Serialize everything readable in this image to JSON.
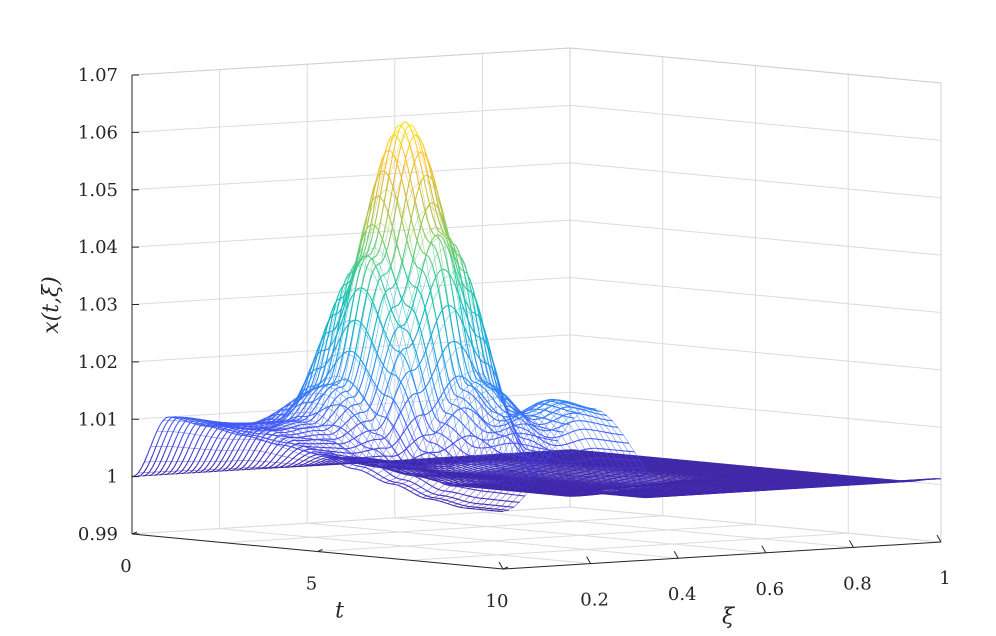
{
  "chart_data": {
    "type": "surface",
    "title": "",
    "xlabel": "t",
    "ylabel": "ξ",
    "zlabel": "x(t,ξ)",
    "xlim": [
      0,
      10
    ],
    "ylim": [
      0,
      1
    ],
    "zlim": [
      0.99,
      1.07
    ],
    "x_ticks": [
      0,
      5,
      10
    ],
    "x_tick_labels": [
      "0",
      "5",
      "10"
    ],
    "y_ticks": [
      0,
      0.2,
      0.4,
      0.6,
      0.8,
      1
    ],
    "y_tick_labels": [
      "0",
      "0.2",
      "0.4",
      "0.6",
      "0.8",
      "1"
    ],
    "z_ticks": [
      0.99,
      1,
      1.01,
      1.02,
      1.03,
      1.04,
      1.05,
      1.06,
      1.07
    ],
    "z_tick_labels": [
      "0.99",
      "1",
      "1.01",
      "1.02",
      "1.03",
      "1.04",
      "1.05",
      "1.06",
      "1.07"
    ],
    "grid": true,
    "colormap": "parula",
    "colormap_colors": [
      "#3E26A8",
      "#4746EB",
      "#3E6BFE",
      "#2D8BF4",
      "#1BA8D8",
      "#10C0BB",
      "#44CB90",
      "#8ECB5C",
      "#D0BB3A",
      "#F9C42F",
      "#F9E61D"
    ],
    "series": [
      {
        "xi": [
          0,
          0.2,
          0.4,
          0.6,
          0.8,
          1
        ],
        "t": [
          0,
          1,
          2,
          3,
          4,
          5,
          6,
          7,
          8,
          9,
          10
        ],
        "x": [
          [
            1.0,
            1.011,
            1.01,
            1.009,
            1.008,
            1.007,
            1.005,
            1.003,
            1.001,
            1.0,
            1.0
          ],
          [
            1.0,
            1.008,
            1.01,
            1.017,
            1.04,
            1.064,
            1.045,
            1.02,
            1.015,
            1.018,
            1.017
          ],
          [
            1.0,
            1.002,
            1.001,
            1.0,
            0.999,
            0.999,
            0.999,
            0.999,
            1.0,
            1.0,
            1.001
          ],
          [
            1.0,
            1.0,
            0.999,
            0.999,
            0.999,
            0.999,
            0.999,
            1.0,
            1.0,
            1.0,
            1.001
          ],
          [
            1.0,
            1.0,
            1.0,
            1.0,
            1.0,
            1.0,
            1.0,
            1.0,
            1.0,
            1.0,
            1.001
          ],
          [
            1.0,
            1.0,
            1.0,
            1.0,
            1.0,
            1.0,
            1.0,
            1.0,
            1.0,
            1.0,
            1.001
          ]
        ]
      }
    ]
  }
}
